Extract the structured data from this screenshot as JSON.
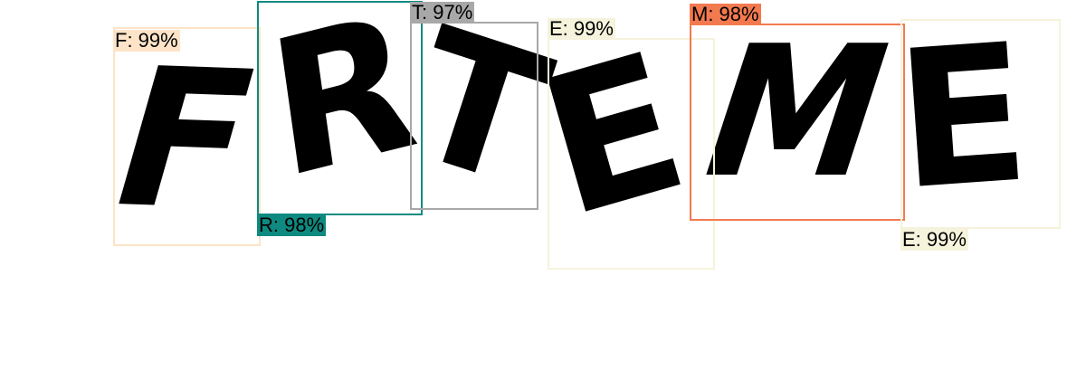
{
  "detections": [
    {
      "char": "F",
      "label": "F: 99%",
      "color": "#fde4c8"
    },
    {
      "char": "R",
      "label": "R: 98%",
      "color": "#0f8a80"
    },
    {
      "char": "T",
      "label": "T: 97%",
      "color": "#a8a8a8"
    },
    {
      "char": "E",
      "label": "E: 99%",
      "color": "#f5f3dc"
    },
    {
      "char": "M",
      "label": "M: 98%",
      "color": "#f37a4f"
    },
    {
      "char": "E",
      "label": "E: 99%",
      "color": "#f5f3dc"
    }
  ]
}
